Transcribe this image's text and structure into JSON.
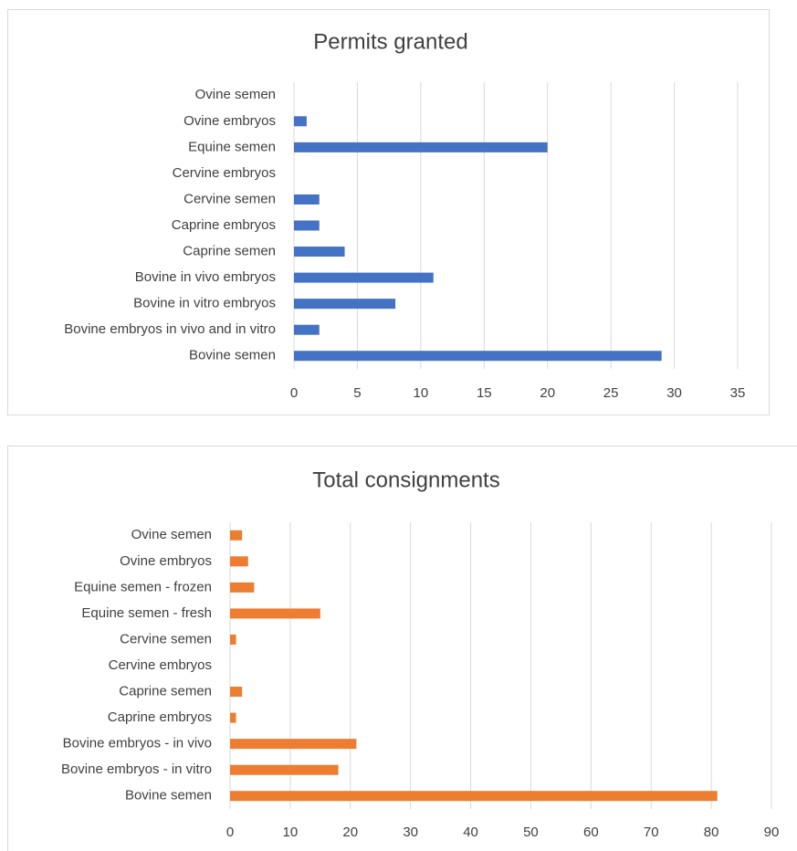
{
  "chart_data": [
    {
      "type": "bar",
      "orientation": "horizontal",
      "title": "Permits granted",
      "categories": [
        "Ovine semen",
        "Ovine embryos",
        "Equine semen",
        "Cervine embryos",
        "Cervine semen",
        "Caprine embryos",
        "Caprine semen",
        "Bovine in vivo embryos",
        "Bovine in vitro embryos",
        "Bovine embryos in vivo and in vitro",
        "Bovine semen"
      ],
      "values": [
        0,
        1,
        20,
        0,
        2,
        2,
        4,
        11,
        8,
        2,
        29
      ],
      "color": "#4472c4",
      "xlim": [
        0,
        35
      ],
      "xticks": [
        0,
        5,
        10,
        15,
        20,
        25,
        30,
        35
      ],
      "grid": true
    },
    {
      "type": "bar",
      "orientation": "horizontal",
      "title": "Total consignments",
      "categories": [
        "Ovine semen",
        "Ovine embryos",
        "Equine semen - frozen",
        "Equine semen - fresh",
        "Cervine semen",
        "Cervine embryos",
        "Caprine semen",
        "Caprine embryos",
        "Bovine embryos - in vivo",
        "Bovine embryos - in vitro",
        "Bovine semen"
      ],
      "values": [
        2,
        3,
        4,
        15,
        1,
        0,
        2,
        1,
        21,
        18,
        81
      ],
      "color": "#ed7d31",
      "xlim": [
        0,
        90
      ],
      "xticks": [
        0,
        10,
        20,
        30,
        40,
        50,
        60,
        70,
        80,
        90
      ],
      "grid": true
    }
  ]
}
